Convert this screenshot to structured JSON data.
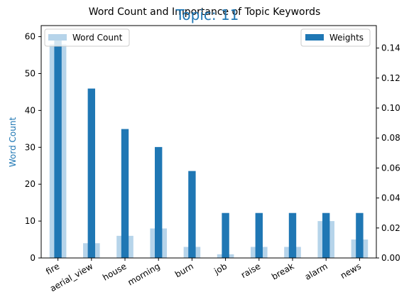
{
  "chart_data": {
    "type": "bar",
    "title": "Word Count and Importance of Topic Keywords",
    "subtitle": "Topic: 11",
    "categories": [
      "fire",
      "aerial_view",
      "house",
      "morning",
      "burn",
      "job",
      "raise",
      "break",
      "alarm",
      "news"
    ],
    "ylabel": "Word Count",
    "ylabel_right": "",
    "ylim": [
      0,
      63
    ],
    "ylim_right": [
      0,
      0.155
    ],
    "yticks": [
      0,
      10,
      20,
      30,
      40,
      50,
      60
    ],
    "yticks_right": [
      "0.00",
      "0.02",
      "0.04",
      "0.06",
      "0.08",
      "0.10",
      "0.12",
      "0.14"
    ],
    "series": [
      {
        "name": "Word Count",
        "axis": "left",
        "color": "#b6d4ea",
        "values": [
          58,
          4,
          6,
          8,
          3,
          1,
          3,
          3,
          10,
          5
        ]
      },
      {
        "name": "Weights",
        "axis": "right",
        "color": "#1f77b4",
        "values": [
          0.149,
          0.113,
          0.086,
          0.074,
          0.058,
          0.03,
          0.03,
          0.03,
          0.03,
          0.03
        ]
      }
    ],
    "legend": [
      {
        "label": "Word Count",
        "placement": "top-left"
      },
      {
        "label": "Weights",
        "placement": "top-right"
      }
    ],
    "colors": {
      "title": "#000000",
      "subtitle": "#1f77b4",
      "ylabel": "#1f77b4"
    },
    "grid": false
  }
}
